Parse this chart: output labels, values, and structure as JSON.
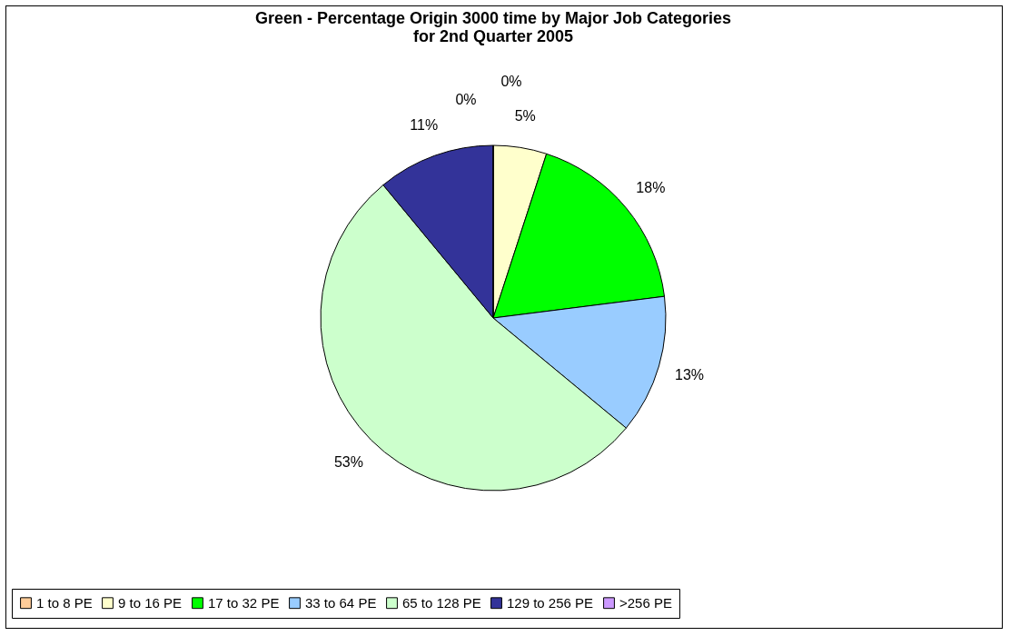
{
  "chart_data": {
    "type": "pie",
    "title": "Green - Percentage Origin 3000 time by Major Job Categories\nfor 2nd Quarter 2005",
    "categories": [
      "1 to 8 PE",
      "9 to 16 PE",
      "17 to 32 PE",
      "33 to 64 PE",
      "65 to 128 PE",
      "129 to 256 PE",
      ">256 PE"
    ],
    "values": [
      0,
      5,
      18,
      13,
      53,
      11,
      0
    ],
    "value_labels": [
      "0%",
      "5%",
      "18%",
      "13%",
      "53%",
      "11%",
      "0%"
    ],
    "colors": [
      "#ffcc99",
      "#ffffcc",
      "#00ff00",
      "#99ccff",
      "#ccffcc",
      "#333399",
      "#cc99ff"
    ],
    "legend": "bottom"
  }
}
